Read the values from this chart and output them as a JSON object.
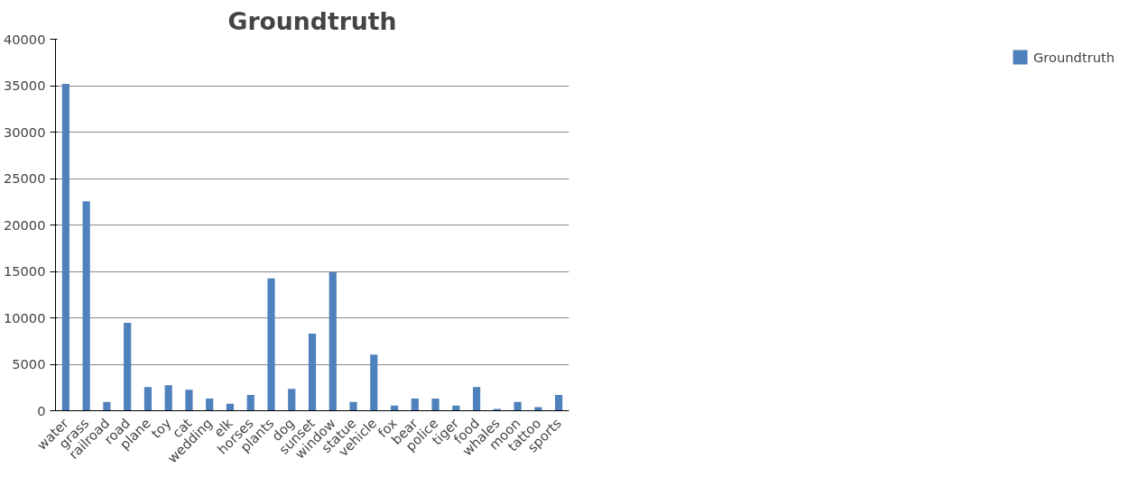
{
  "chart_data": {
    "type": "bar",
    "title": "Groundtruth",
    "categories": [
      "water",
      "grass",
      "railroad",
      "road",
      "plane",
      "toy",
      "cat",
      "wedding",
      "elk",
      "horses",
      "plants",
      "dog",
      "sunset",
      "window",
      "statue",
      "vehicle",
      "fox",
      "bear",
      "police",
      "tiger",
      "food",
      "whales",
      "moon",
      "tattoo",
      "sports"
    ],
    "series": [
      {
        "name": "Groundtruth",
        "color": "#4f81bd",
        "values": [
          35200,
          22550,
          950,
          9470,
          2550,
          2750,
          2250,
          1300,
          750,
          1700,
          14250,
          2350,
          8300,
          14900,
          950,
          6050,
          550,
          1300,
          1300,
          550,
          2550,
          200,
          950,
          400,
          1700
        ]
      }
    ],
    "ylim": [
      0,
      40000
    ],
    "yticks": [
      0,
      5000,
      10000,
      15000,
      20000,
      25000,
      30000,
      35000,
      40000
    ],
    "grid": "y",
    "legend": "right"
  }
}
